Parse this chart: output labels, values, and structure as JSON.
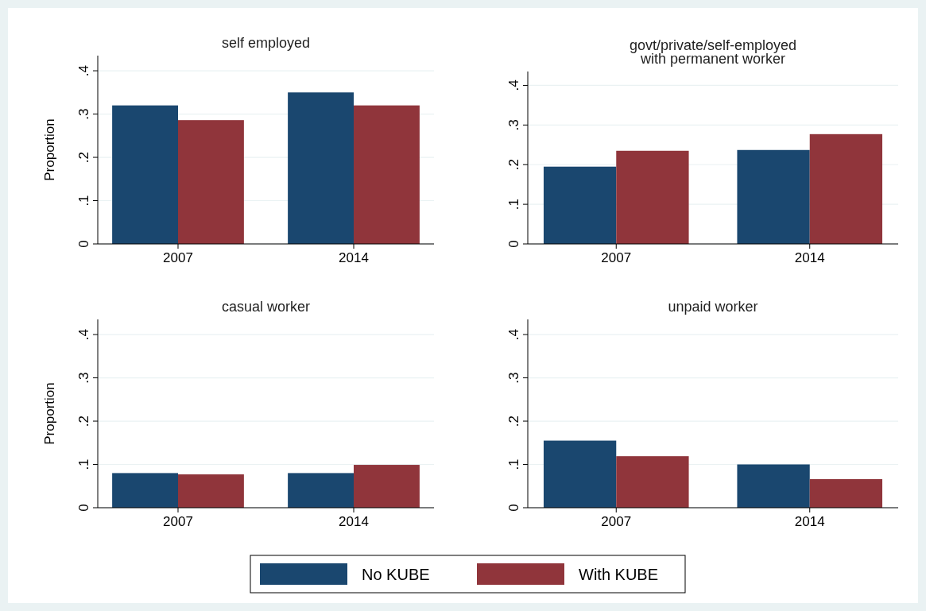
{
  "chart_data": [
    {
      "type": "bar",
      "title": "self employed",
      "ylabel": "Proportion",
      "categories": [
        "2007",
        "2014"
      ],
      "series": [
        {
          "name": "No KUBE",
          "color": "#1a476f",
          "values": [
            0.32,
            0.35
          ]
        },
        {
          "name": "With KUBE",
          "color": "#90353b",
          "values": [
            0.286,
            0.32
          ]
        }
      ],
      "ylim": [
        0,
        0.435
      ],
      "yticks": [
        {
          "value": 0,
          "label": "0"
        },
        {
          "value": 0.1,
          "label": ".1"
        },
        {
          "value": 0.2,
          "label": ".2"
        },
        {
          "value": 0.3,
          "label": ".3"
        },
        {
          "value": 0.4,
          "label": ".4"
        }
      ],
      "grid": "y",
      "legend": "bottom"
    },
    {
      "type": "bar",
      "title": "govt/private/self-employed\nwith permanent worker",
      "categories": [
        "2007",
        "2014"
      ],
      "series": [
        {
          "color": "#1a476f",
          "values": [
            0.195,
            0.237
          ]
        },
        {
          "color": "#90353b",
          "values": [
            0.235,
            0.277
          ]
        }
      ],
      "ylim": [
        0,
        0.435
      ],
      "yticks": [
        {
          "value": 0,
          "label": "0"
        },
        {
          "value": 0.1,
          "label": ".1"
        },
        {
          "value": 0.2,
          "label": ".2"
        },
        {
          "value": 0.3,
          "label": ".3"
        },
        {
          "value": 0.4,
          "label": ".4"
        }
      ],
      "grid": "y"
    },
    {
      "type": "bar",
      "title": "casual worker",
      "ylabel": "Proportion",
      "categories": [
        "2007",
        "2014"
      ],
      "series": [
        {
          "color": "#1a476f",
          "values": [
            0.08,
            0.08
          ]
        },
        {
          "color": "#90353b",
          "values": [
            0.077,
            0.099
          ]
        }
      ],
      "ylim": [
        0,
        0.435
      ],
      "yticks": [
        {
          "value": 0,
          "label": "0"
        },
        {
          "value": 0.1,
          "label": ".1"
        },
        {
          "value": 0.2,
          "label": ".2"
        },
        {
          "value": 0.3,
          "label": ".3"
        },
        {
          "value": 0.4,
          "label": ".4"
        }
      ],
      "grid": "y"
    },
    {
      "type": "bar",
      "title": "unpaid worker",
      "categories": [
        "2007",
        "2014"
      ],
      "series": [
        {
          "color": "#1a476f",
          "values": [
            0.155,
            0.1
          ]
        },
        {
          "color": "#90353b",
          "values": [
            0.119,
            0.066
          ]
        }
      ],
      "ylim": [
        0,
        0.435
      ],
      "yticks": [
        {
          "value": 0,
          "label": "0"
        },
        {
          "value": 0.1,
          "label": ".1"
        },
        {
          "value": 0.2,
          "label": ".2"
        },
        {
          "value": 0.3,
          "label": ".3"
        },
        {
          "value": 0.4,
          "label": ".4"
        }
      ],
      "grid": "y"
    }
  ]
}
